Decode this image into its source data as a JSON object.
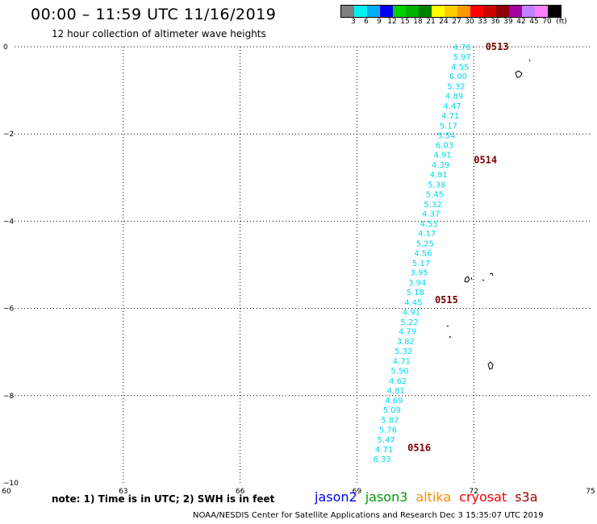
{
  "header": {
    "title": "00:00 – 11:59 UTC 11/16/2019",
    "subtitle": "12 hour collection of altimeter wave heights"
  },
  "colorbar": {
    "colors": [
      "#808080",
      "#00f0f0",
      "#00b0f0",
      "#0000f0",
      "#00d000",
      "#00b000",
      "#008000",
      "#ffff00",
      "#ffcc00",
      "#ff9900",
      "#ff0000",
      "#d00000",
      "#900000",
      "#a000a0",
      "#c080ff",
      "#ff80ff",
      "#000000"
    ],
    "labels": [
      "3",
      "6",
      "9",
      "12",
      "15",
      "18",
      "21",
      "24",
      "27",
      "30",
      "33",
      "36",
      "39",
      "42",
      "45",
      "70",
      "(ft)"
    ]
  },
  "axes": {
    "x_ticks": [
      "60",
      "63",
      "66",
      "69",
      "72",
      "75"
    ],
    "y_ticks": [
      "0",
      "−2",
      "−4",
      "−6",
      "−8",
      "−10"
    ]
  },
  "chart_data": {
    "type": "scatter",
    "xlim": [
      60,
      75
    ],
    "ylim": [
      -10,
      0
    ],
    "grid": true,
    "wave_heights": [
      {
        "x": 71.7,
        "y": 0.0,
        "label": "4.76"
      },
      {
        "x": 71.7,
        "y": -0.22,
        "label": "5.97"
      },
      {
        "x": 71.65,
        "y": -0.45,
        "label": "4.55"
      },
      {
        "x": 71.6,
        "y": -0.67,
        "label": "6.00"
      },
      {
        "x": 71.55,
        "y": -0.9,
        "label": "5.32"
      },
      {
        "x": 71.5,
        "y": -1.12,
        "label": "4.89"
      },
      {
        "x": 71.45,
        "y": -1.35,
        "label": "4.47"
      },
      {
        "x": 71.4,
        "y": -1.57,
        "label": "4.71"
      },
      {
        "x": 71.35,
        "y": -1.8,
        "label": "5.17"
      },
      {
        "x": 71.3,
        "y": -2.02,
        "label": "5.54"
      },
      {
        "x": 71.25,
        "y": -2.25,
        "label": "6.03"
      },
      {
        "x": 71.2,
        "y": -2.47,
        "label": "4.91"
      },
      {
        "x": 71.15,
        "y": -2.7,
        "label": "4.39"
      },
      {
        "x": 71.1,
        "y": -2.92,
        "label": "4.91"
      },
      {
        "x": 71.05,
        "y": -3.15,
        "label": "5.38"
      },
      {
        "x": 71.0,
        "y": -3.37,
        "label": "5.45"
      },
      {
        "x": 70.95,
        "y": -3.6,
        "label": "5.32"
      },
      {
        "x": 70.9,
        "y": -3.82,
        "label": "4.37"
      },
      {
        "x": 70.85,
        "y": -4.05,
        "label": "4.55"
      },
      {
        "x": 70.8,
        "y": -4.27,
        "label": "4.17"
      },
      {
        "x": 70.75,
        "y": -4.5,
        "label": "5.25"
      },
      {
        "x": 70.7,
        "y": -4.72,
        "label": "4.56"
      },
      {
        "x": 70.65,
        "y": -4.95,
        "label": "5.17"
      },
      {
        "x": 70.6,
        "y": -5.17,
        "label": "3.95"
      },
      {
        "x": 70.55,
        "y": -5.4,
        "label": "3.94"
      },
      {
        "x": 70.5,
        "y": -5.62,
        "label": "5.18"
      },
      {
        "x": 70.45,
        "y": -5.85,
        "label": "4.45"
      },
      {
        "x": 70.4,
        "y": -6.07,
        "label": "4.91"
      },
      {
        "x": 70.35,
        "y": -6.3,
        "label": "5.22"
      },
      {
        "x": 70.3,
        "y": -6.52,
        "label": "4.79"
      },
      {
        "x": 70.25,
        "y": -6.75,
        "label": "3.82"
      },
      {
        "x": 70.2,
        "y": -6.97,
        "label": "5.32"
      },
      {
        "x": 70.15,
        "y": -7.2,
        "label": "4.71"
      },
      {
        "x": 70.1,
        "y": -7.42,
        "label": "5.50"
      },
      {
        "x": 70.05,
        "y": -7.65,
        "label": "4.62"
      },
      {
        "x": 70.0,
        "y": -7.87,
        "label": "4.81"
      },
      {
        "x": 69.95,
        "y": -8.1,
        "label": "4.69"
      },
      {
        "x": 69.9,
        "y": -8.32,
        "label": "5.09"
      },
      {
        "x": 69.85,
        "y": -8.55,
        "label": "5.87"
      },
      {
        "x": 69.8,
        "y": -8.77,
        "label": "5.76"
      },
      {
        "x": 69.75,
        "y": -9.0,
        "label": "5.47"
      },
      {
        "x": 69.7,
        "y": -9.22,
        "label": "4.71"
      },
      {
        "x": 69.65,
        "y": -9.45,
        "label": "6.33"
      }
    ],
    "time_labels": [
      {
        "x": 72.6,
        "y": 0.0,
        "label": "0513"
      },
      {
        "x": 72.3,
        "y": -2.6,
        "label": "0514"
      },
      {
        "x": 71.3,
        "y": -5.8,
        "label": "0515"
      },
      {
        "x": 70.6,
        "y": -9.2,
        "label": "0516"
      }
    ]
  },
  "footer_note": "note: 1) Time is in UTC; 2) SWH is in feet",
  "missions": [
    {
      "name": "jason2",
      "color": "#0000ee"
    },
    {
      "name": "jason3",
      "color": "#009900"
    },
    {
      "name": "altika",
      "color": "#ff8c00"
    },
    {
      "name": "cryosat",
      "color": "#ee0000"
    },
    {
      "name": "s3a",
      "color": "#990000"
    }
  ],
  "credit": "NOAA/NESDIS Center for Satellite Applications and Research   Dec  3 15:35:07 UTC 2019"
}
